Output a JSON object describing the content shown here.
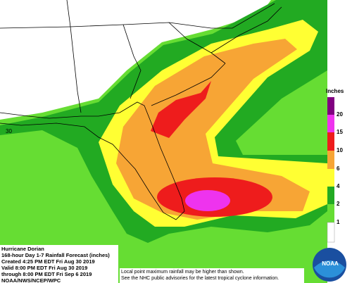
{
  "map": {
    "legend": {
      "title": "Inches",
      "labels": [
        20,
        15,
        10,
        6,
        4,
        2,
        1
      ]
    },
    "info": {
      "lines": [
        "Hurricane Dorian",
        "168-hour Day 1-7 Rainfall Forecast (inches)",
        "Created 4:25 PM EDT Fri Aug 30 2019",
        "Valid 8:00 PM EDT Fri Aug 30 2019",
        "through 8:00 PM EDT Fri Sep 6 2019",
        "NOAA/NWS/NCEP/WPC"
      ]
    },
    "note": [
      "Local point maximum rainfall may be higher than shown.",
      "See the NHC public advisories for the latest tropical cyclone information."
    ],
    "latitude_label": "30",
    "logo": "NOAA"
  }
}
